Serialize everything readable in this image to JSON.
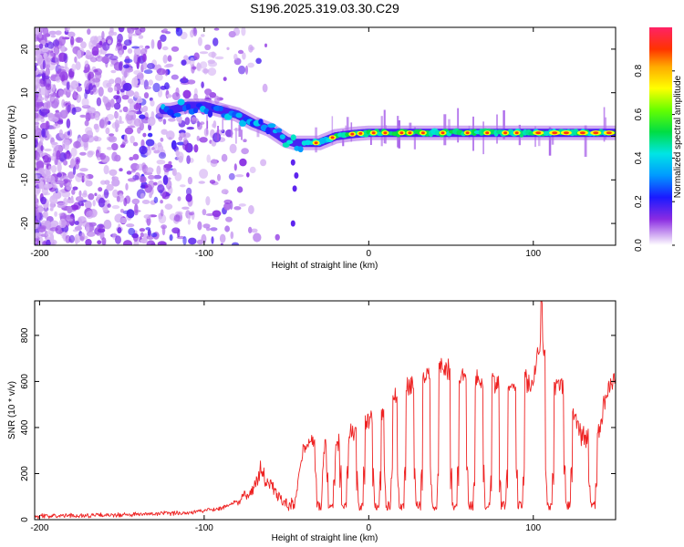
{
  "title": "S196.2025.319.03.30.C29",
  "chart_data": [
    {
      "type": "heatmap",
      "name": "spectrogram",
      "xlabel": "Height of straight line (km)",
      "ylabel": "Frequency (Hz)",
      "xlim": [
        -203,
        150
      ],
      "ylim": [
        -25,
        25
      ],
      "xticks": [
        -200,
        -100,
        0,
        100
      ],
      "xtick_labels": [
        "-200",
        "-100",
        "0",
        "100"
      ],
      "yticks": [
        20,
        10,
        0,
        -10,
        -20
      ],
      "ytick_labels": [
        "20",
        "10",
        "0",
        "-10",
        "-20"
      ],
      "grid": false,
      "colorbar": {
        "label": "Normalized spectral amplitude",
        "range": [
          0,
          1
        ],
        "ticks": [
          0,
          0.2,
          0.4,
          0.6,
          0.8
        ],
        "tick_labels": [
          "0.0",
          "0.2",
          "0.4",
          "0.6",
          "0.8"
        ]
      },
      "ridge_frequency_hz": {
        "x": [
          -120,
          -110,
          -100,
          -90,
          -80,
          -70,
          -60,
          -50,
          -45,
          -30,
          -20,
          -10,
          0,
          50,
          100,
          150
        ],
        "f": [
          6,
          7,
          7,
          6,
          5,
          3,
          1.5,
          -1,
          -1.5,
          -1.5,
          0,
          0.5,
          0.8,
          0.8,
          0.8,
          0.8
        ]
      }
    },
    {
      "type": "line",
      "name": "snr",
      "xlabel": "Height of straight line (km)",
      "ylabel": "SNR (10 * v/v)",
      "xlim": [
        -203,
        150
      ],
      "ylim": [
        0,
        950
      ],
      "xticks": [
        -200,
        -100,
        0,
        100
      ],
      "xtick_labels": [
        "-200",
        "-100",
        "0",
        "100"
      ],
      "yticks": [
        0,
        200,
        400,
        600,
        800
      ],
      "ytick_labels": [
        "0",
        "200",
        "400",
        "600",
        "800"
      ],
      "grid": false,
      "series": [
        {
          "name": "SNR",
          "color": "#ee2222",
          "envelope": {
            "x": [
              -203,
              -150,
              -110,
              -90,
              -80,
              -72,
              -66,
              -60,
              -55,
              -50,
              -45,
              -40,
              -35,
              -30,
              -20,
              -10,
              0,
              10,
              20,
              30,
              40,
              45,
              60,
              80,
              100,
              105,
              110,
              120,
              125,
              128,
              135,
              140,
              145,
              150
            ],
            "y": [
              15,
              20,
              30,
              50,
              80,
              120,
              200,
              150,
              100,
              60,
              60,
              300,
              350,
              300,
              320,
              380,
              430,
              460,
              560,
              600,
              640,
              660,
              600,
              590,
              600,
              820,
              600,
              580,
              450,
              380,
              330,
              400,
              570,
              600
            ]
          },
          "dips": [
            -30,
            -23,
            -15,
            -5,
            5,
            12,
            20,
            30,
            40,
            52,
            62,
            72,
            82,
            92,
            110,
            121,
            136
          ],
          "peaks": [
            {
              "x": 105,
              "y": 960
            }
          ]
        }
      ]
    }
  ]
}
